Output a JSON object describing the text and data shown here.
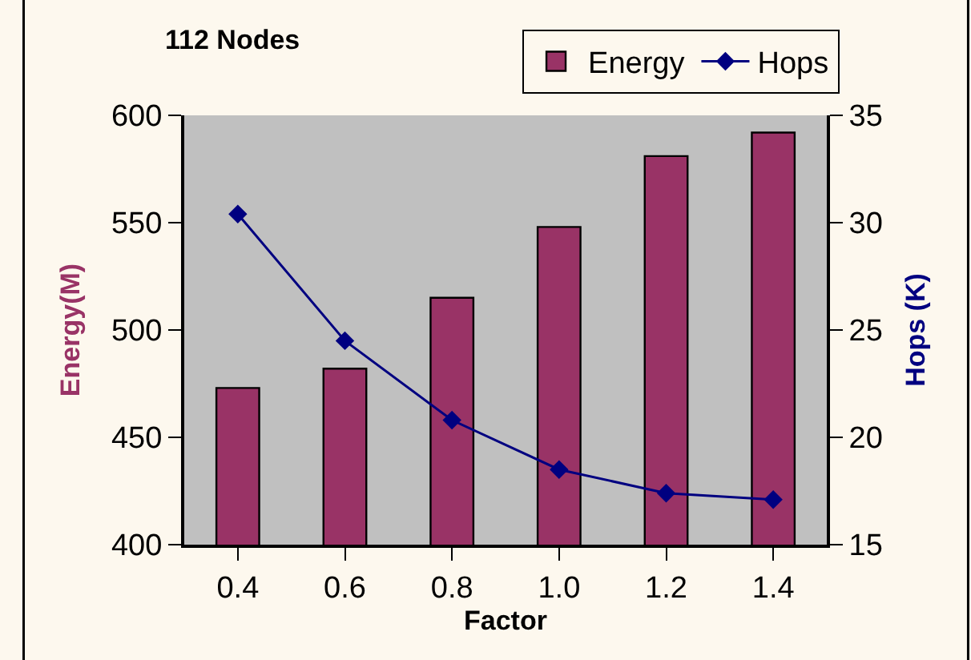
{
  "chart_data": {
    "type": "bar",
    "title": "112 Nodes",
    "xlabel": "Factor",
    "ylabel": "Energy(M)",
    "y2label": "Hops (K)",
    "categories": [
      "0.4",
      "0.6",
      "0.8",
      "1.0",
      "1.2",
      "1.4"
    ],
    "series": [
      {
        "name": "Energy",
        "color": "#993366",
        "values": [
          473,
          482,
          515,
          548,
          581,
          592
        ]
      },
      {
        "name": "Hops",
        "type": "line",
        "axis": "y2",
        "color": "#000080",
        "marker": "diamond",
        "values": [
          30.4,
          24.5,
          20.8,
          18.5,
          17.4,
          17.1
        ]
      }
    ],
    "ylim": [
      400,
      600
    ],
    "yticks": [
      400,
      450,
      500,
      550,
      600
    ],
    "y2lim": [
      15,
      35
    ],
    "y2ticks": [
      15,
      20,
      25,
      30,
      35
    ],
    "grid": false,
    "legend": "top right"
  }
}
